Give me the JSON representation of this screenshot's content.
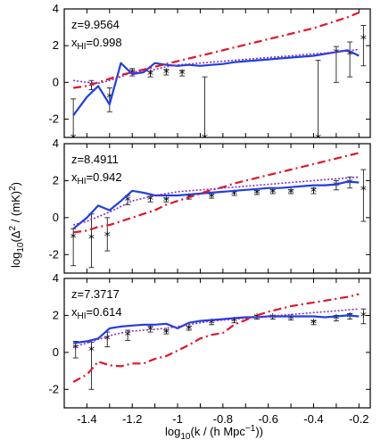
{
  "chart_data": {
    "type": "line",
    "xlabel": "log10(k / (h Mpc-1))",
    "ylabel": "log10(Δ2 / (mK)2)",
    "xlim": [
      -1.5,
      -0.15
    ],
    "ylim": [
      -3,
      4
    ],
    "x_ticks": [
      -1.4,
      -1.3,
      -1.2,
      -1.1,
      -1.0,
      -0.9,
      -0.8,
      -0.7,
      -0.6,
      -0.5,
      -0.4,
      -0.3,
      -0.2
    ],
    "x_tick_labels": [
      "-1.4",
      "-1.2",
      "-1",
      "-0.8",
      "-0.6",
      "-0.4",
      "-0.2"
    ],
    "y_tick_labels": [
      "-2",
      "0",
      "2",
      "4"
    ],
    "x": [
      -1.46,
      -1.4,
      -1.35,
      -1.3,
      -1.25,
      -1.2,
      -1.15,
      -1.1,
      -1.05,
      -1.0,
      -0.95,
      -0.9,
      -0.85,
      -0.8,
      -0.75,
      -0.7,
      -0.65,
      -0.6,
      -0.55,
      -0.5,
      -0.45,
      -0.4,
      -0.35,
      -0.3,
      -0.25,
      -0.2
    ],
    "panels": [
      {
        "z": "z=9.9564",
        "xhi": "0.998",
        "series": [
          {
            "style": "solid",
            "color": "#1f3fe0",
            "values": [
              -1.8,
              -0.8,
              -0.2,
              -1.2,
              1.05,
              0.45,
              0.55,
              1.05,
              0.95,
              0.9,
              0.95,
              0.9,
              0.95,
              1.0,
              1.1,
              1.15,
              1.2,
              1.25,
              1.3,
              1.35,
              1.4,
              1.45,
              1.55,
              1.65,
              1.75,
              1.45
            ]
          },
          {
            "style": "dashed",
            "color": "#e0142a",
            "values": [
              -0.3,
              -0.2,
              0.0,
              0.2,
              0.4,
              0.55,
              0.7,
              0.85,
              1.0,
              1.15,
              1.3,
              1.45,
              1.6,
              1.75,
              1.9,
              2.05,
              2.2,
              2.35,
              2.5,
              2.65,
              2.8,
              2.95,
              3.15,
              3.35,
              3.55,
              3.8
            ]
          },
          {
            "style": "dotted",
            "color": "#8030c0",
            "values": [
              0.1,
              0.0,
              -0.05,
              0.1,
              0.3,
              0.55,
              0.6,
              0.7,
              0.85,
              0.95,
              1.0,
              1.05,
              1.1,
              1.15,
              1.2,
              1.25,
              1.3,
              1.35,
              1.4,
              1.45,
              1.5,
              1.55,
              1.6,
              1.65,
              1.7,
              1.8
            ]
          }
        ],
        "points": [
          {
            "x": -1.46,
            "y": -3.0,
            "lo": -3.0,
            "hi": -0.9
          },
          {
            "x": -1.38,
            "y": -0.15,
            "lo": -0.4,
            "hi": 0.1
          },
          {
            "x": -1.3,
            "y": -0.8,
            "lo": -1.6,
            "hi": -0.3
          },
          {
            "x": -1.2,
            "y": 0.55,
            "lo": 0.35,
            "hi": 0.75
          },
          {
            "x": -1.12,
            "y": 0.45,
            "lo": 0.3,
            "hi": 0.6
          },
          {
            "x": -1.05,
            "y": 0.55,
            "lo": 0.4,
            "hi": 0.7
          },
          {
            "x": -0.98,
            "y": 0.5,
            "lo": 0.35,
            "hi": 0.65
          },
          {
            "x": -0.88,
            "y": -3.0,
            "lo": -3.0,
            "hi": 0.3
          },
          {
            "x": -0.38,
            "y": -3.0,
            "lo": -3.0,
            "hi": 1.2
          },
          {
            "x": -0.3,
            "y": 1.65,
            "lo": 0.0,
            "hi": 1.95
          },
          {
            "x": -0.24,
            "y": 1.55,
            "lo": 0.3,
            "hi": 2.2
          },
          {
            "x": -0.18,
            "y": 2.4,
            "lo": 0.9,
            "hi": 3.1
          }
        ]
      },
      {
        "z": "z=8.4911",
        "xhi": "0.942",
        "series": [
          {
            "style": "solid",
            "color": "#1f3fe0",
            "values": [
              -0.6,
              0.0,
              0.65,
              0.4,
              0.9,
              1.45,
              1.35,
              1.2,
              1.2,
              1.2,
              1.25,
              1.3,
              1.35,
              1.4,
              1.45,
              1.5,
              1.55,
              1.6,
              1.6,
              1.65,
              1.7,
              1.75,
              1.75,
              1.8,
              1.95,
              1.9
            ]
          },
          {
            "style": "dashed",
            "color": "#e0142a",
            "values": [
              -0.8,
              -0.7,
              -0.5,
              -0.4,
              -0.2,
              0.0,
              0.2,
              0.4,
              0.7,
              0.9,
              1.1,
              1.3,
              1.5,
              1.65,
              1.85,
              2.0,
              2.15,
              2.3,
              2.45,
              2.6,
              2.75,
              2.9,
              3.05,
              3.2,
              3.35,
              3.5
            ]
          },
          {
            "style": "dotted",
            "color": "#8030c0",
            "values": [
              -0.4,
              -0.2,
              0.05,
              0.3,
              0.6,
              0.9,
              1.05,
              1.2,
              1.3,
              1.4,
              1.45,
              1.5,
              1.55,
              1.6,
              1.65,
              1.7,
              1.75,
              1.8,
              1.85,
              1.9,
              1.95,
              2.0,
              2.05,
              2.1,
              2.15,
              2.2
            ]
          }
        ],
        "points": [
          {
            "x": -1.46,
            "y": -1.05,
            "lo": -2.6,
            "hi": -0.6
          },
          {
            "x": -1.38,
            "y": -1.1,
            "lo": -2.7,
            "hi": 0.2
          },
          {
            "x": -1.31,
            "y": -0.95,
            "lo": -1.8,
            "hi": 0.0
          },
          {
            "x": -1.22,
            "y": 0.95,
            "lo": 0.7,
            "hi": 1.2
          },
          {
            "x": -1.12,
            "y": 1.0,
            "lo": 0.85,
            "hi": 1.15
          },
          {
            "x": -1.05,
            "y": 0.95,
            "lo": 0.85,
            "hi": 1.05
          },
          {
            "x": -0.95,
            "y": 1.1,
            "lo": 1.0,
            "hi": 1.2
          },
          {
            "x": -0.85,
            "y": 1.15,
            "lo": 1.05,
            "hi": 1.25
          },
          {
            "x": -0.75,
            "y": 1.3,
            "lo": 1.2,
            "hi": 1.4
          },
          {
            "x": -0.65,
            "y": 1.35,
            "lo": 1.25,
            "hi": 1.45
          },
          {
            "x": -0.58,
            "y": 1.4,
            "lo": 1.3,
            "hi": 1.5
          },
          {
            "x": -0.5,
            "y": 1.4,
            "lo": 1.3,
            "hi": 1.5
          },
          {
            "x": -0.4,
            "y": 1.45,
            "lo": 1.3,
            "hi": 1.6
          },
          {
            "x": -0.3,
            "y": 1.75,
            "lo": 1.5,
            "hi": 2.0
          },
          {
            "x": -0.24,
            "y": 1.9,
            "lo": 1.6,
            "hi": 2.2
          },
          {
            "x": -0.18,
            "y": 1.55,
            "lo": -0.2,
            "hi": 2.6
          }
        ]
      },
      {
        "z": "z=7.3717",
        "xhi": "0.614",
        "series": [
          {
            "style": "solid",
            "color": "#1f3fe0",
            "values": [
              0.5,
              0.6,
              0.75,
              1.3,
              1.4,
              1.45,
              1.5,
              1.5,
              1.55,
              1.3,
              1.6,
              1.7,
              1.75,
              1.8,
              1.85,
              1.9,
              1.9,
              1.95,
              1.95,
              1.95,
              1.95,
              1.95,
              1.9,
              1.95,
              2.0,
              1.95
            ]
          },
          {
            "style": "dashed",
            "color": "#e0142a",
            "values": [
              -1.6,
              -1.2,
              -0.5,
              -0.7,
              -0.75,
              -0.6,
              -0.6,
              -0.35,
              -0.2,
              0.1,
              0.4,
              0.75,
              0.95,
              1.05,
              1.5,
              1.75,
              2.0,
              2.2,
              2.35,
              2.5,
              2.6,
              2.7,
              2.8,
              2.9,
              3.0,
              3.15
            ]
          },
          {
            "style": "dotted",
            "color": "#8030c0",
            "values": [
              0.3,
              0.5,
              0.7,
              0.9,
              1.05,
              1.15,
              1.2,
              1.25,
              1.3,
              1.4,
              1.5,
              1.6,
              1.7,
              1.75,
              1.8,
              1.85,
              1.9,
              1.95,
              2.0,
              2.05,
              2.1,
              2.15,
              2.2,
              2.25,
              2.3,
              2.35
            ]
          }
        ],
        "points": [
          {
            "x": -1.45,
            "y": 0.25,
            "lo": -0.3,
            "hi": 0.6
          },
          {
            "x": -1.38,
            "y": 0.15,
            "lo": -2.0,
            "hi": 0.55
          },
          {
            "x": -1.31,
            "y": 0.75,
            "lo": 0.3,
            "hi": 1.1
          },
          {
            "x": -1.22,
            "y": 0.95,
            "lo": 0.65,
            "hi": 1.2
          },
          {
            "x": -1.12,
            "y": 1.25,
            "lo": 1.1,
            "hi": 1.4
          },
          {
            "x": -1.05,
            "y": 1.1,
            "lo": 1.0,
            "hi": 1.2
          },
          {
            "x": -0.95,
            "y": 1.3,
            "lo": 1.2,
            "hi": 1.4
          },
          {
            "x": -0.85,
            "y": 1.6,
            "lo": 1.5,
            "hi": 1.7
          },
          {
            "x": -0.75,
            "y": 1.7,
            "lo": 1.6,
            "hi": 1.8
          },
          {
            "x": -0.65,
            "y": 1.9,
            "lo": 1.8,
            "hi": 2.0
          },
          {
            "x": -0.58,
            "y": 1.9,
            "lo": 1.8,
            "hi": 2.0
          },
          {
            "x": -0.5,
            "y": 1.85,
            "lo": 1.75,
            "hi": 1.95
          },
          {
            "x": -0.4,
            "y": 1.6,
            "lo": 1.5,
            "hi": 1.7
          },
          {
            "x": -0.3,
            "y": 1.85,
            "lo": 1.7,
            "hi": 2.0
          },
          {
            "x": -0.24,
            "y": 1.95,
            "lo": 1.8,
            "hi": 2.1
          },
          {
            "x": -0.18,
            "y": 2.0,
            "lo": 1.55,
            "hi": 2.35
          }
        ]
      }
    ]
  }
}
